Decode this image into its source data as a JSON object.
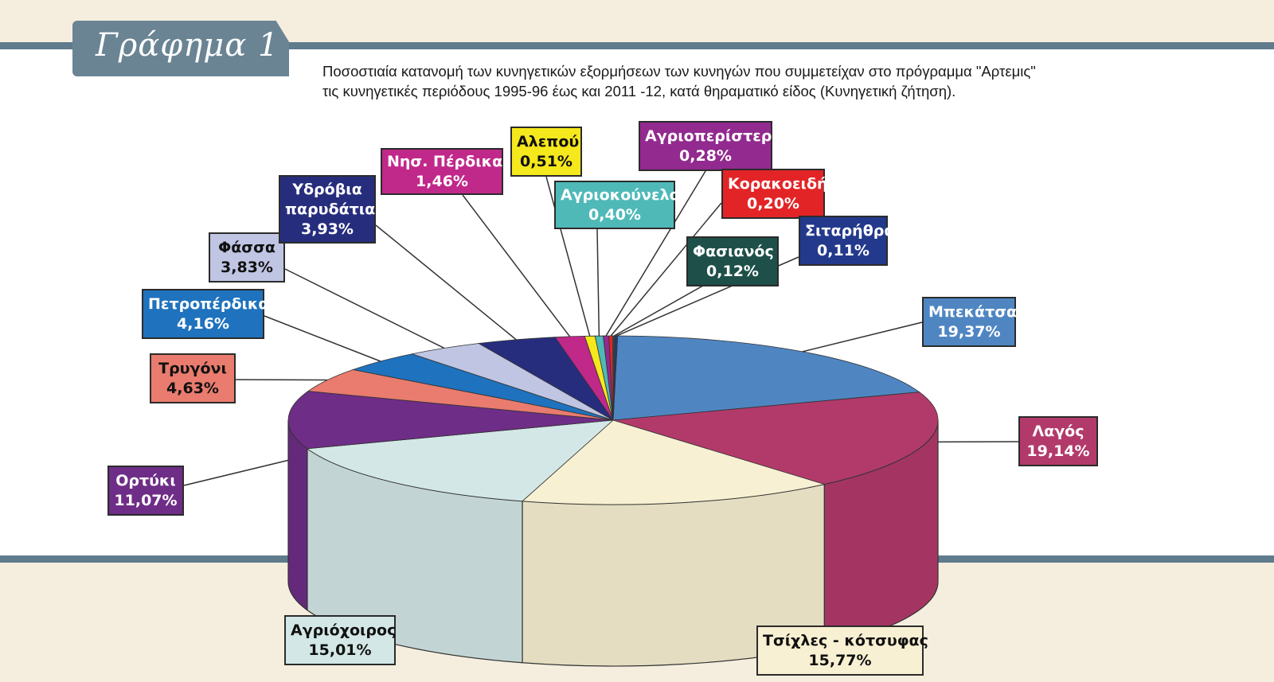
{
  "header": {
    "tab_label": "Γράφημα 1",
    "subtitle_line1": "Ποσοστιαία κατανομή των κυνηγετικών εξορμήσεων των κυνηγών που συμμετείχαν στο πρόγραμμα \"Αρτεμις\"",
    "subtitle_line2": "τις κυνηγετικές περιόδους 1995-96 έως και 2011 -12, κατά θηραματικό είδος (Κυνηγετική ζήτηση)."
  },
  "colors": {
    "rule": "#5f7b8c",
    "tab": "#6a8494",
    "band_outside": "#f5eedf",
    "band_inside": "#ffffff"
  },
  "chart_data": {
    "type": "pie",
    "style": "3d-exploded-labels",
    "unit": "%",
    "slices": [
      {
        "key": "mpekatsa",
        "name": "Μπεκάτσα",
        "value": 19.37,
        "label": "19,37%",
        "color": "#4f86c2",
        "text_color": "#ffffff"
      },
      {
        "key": "lagos",
        "name": "Λαγός",
        "value": 19.14,
        "label": "19,14%",
        "color": "#b23a6b",
        "text_color": "#ffffff"
      },
      {
        "key": "tsichles",
        "name": "Τσίχλες - κότσυφας",
        "value": 15.77,
        "label": "15,77%",
        "color": "#f8f0d2",
        "text_color": "#111111"
      },
      {
        "key": "agriochoiros",
        "name": "Αγριόχοιρος",
        "value": 15.01,
        "label": "15,01%",
        "color": "#d3e8e6",
        "text_color": "#111111"
      },
      {
        "key": "ortyki",
        "name": "Ορτύκι",
        "value": 11.07,
        "label": "11,07%",
        "color": "#6e2d86",
        "text_color": "#ffffff"
      },
      {
        "key": "trygoni",
        "name": "Τρυγόνι",
        "value": 4.63,
        "label": "4,63%",
        "color": "#e97c6e",
        "text_color": "#111111"
      },
      {
        "key": "petroperdika",
        "name": "Πετροπέρδικα",
        "value": 4.16,
        "label": "4,16%",
        "color": "#1f72bd",
        "text_color": "#ffffff"
      },
      {
        "key": "fassa",
        "name": "Φάσσα",
        "value": 3.83,
        "label": "3,83%",
        "color": "#bfc5e2",
        "text_color": "#111111"
      },
      {
        "key": "ydrovia",
        "name": "Υδρόβια παρυδάτια",
        "label_lines": [
          "Υδρόβια",
          "παρυδάτια"
        ],
        "value": 3.93,
        "label": "3,93%",
        "color": "#272d7d",
        "text_color": "#ffffff"
      },
      {
        "key": "nisperdika",
        "name": "Νησ. Πέρδικα",
        "value": 1.46,
        "label": "1,46%",
        "color": "#c0288a",
        "text_color": "#ffffff"
      },
      {
        "key": "alepou",
        "name": "Αλεπού",
        "value": 0.51,
        "label": "0,51%",
        "color": "#f5e81c",
        "text_color": "#111111"
      },
      {
        "key": "agriokounelo",
        "name": "Αγριοκούνελο",
        "value": 0.4,
        "label": "0,40%",
        "color": "#4fb9b8",
        "text_color": "#ffffff"
      },
      {
        "key": "agriperistero",
        "name": "Αγριοπερίστερο",
        "value": 0.28,
        "label": "0,28%",
        "color": "#922a8f",
        "text_color": "#ffffff"
      },
      {
        "key": "korakoeidi",
        "name": "Κορακοειδή",
        "value": 0.2,
        "label": "0,20%",
        "color": "#e32427",
        "text_color": "#ffffff"
      },
      {
        "key": "fasianos",
        "name": "Φασιανός",
        "value": 0.12,
        "label": "0,12%",
        "color": "#1e4f49",
        "text_color": "#ffffff"
      },
      {
        "key": "sitarithra",
        "name": "Σιταρήθρα",
        "value": 0.11,
        "label": "0,11%",
        "color": "#23398c",
        "text_color": "#ffffff"
      }
    ]
  }
}
